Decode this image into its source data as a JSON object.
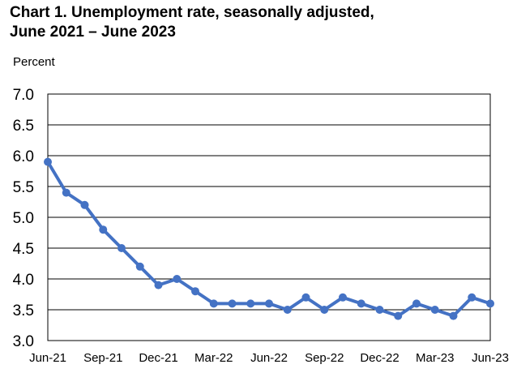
{
  "chart_data": {
    "type": "line",
    "title": "Chart 1. Unemployment rate, seasonally adjusted,\nJune 2021 – June 2023",
    "ylabel": "Percent",
    "xlabel": "",
    "ylim": [
      3.0,
      7.0
    ],
    "yticks": [
      "3.0",
      "3.5",
      "4.0",
      "4.5",
      "5.0",
      "5.5",
      "6.0",
      "6.5",
      "7.0"
    ],
    "xtick_labels": [
      {
        "index": 0,
        "label": "Jun-21"
      },
      {
        "index": 3,
        "label": "Sep-21"
      },
      {
        "index": 6,
        "label": "Dec-21"
      },
      {
        "index": 9,
        "label": "Mar-22"
      },
      {
        "index": 12,
        "label": "Jun-22"
      },
      {
        "index": 15,
        "label": "Sep-22"
      },
      {
        "index": 18,
        "label": "Dec-22"
      },
      {
        "index": 21,
        "label": "Mar-23"
      },
      {
        "index": 24,
        "label": "Jun-23"
      }
    ],
    "x": [
      "Jun-21",
      "Jul-21",
      "Aug-21",
      "Sep-21",
      "Oct-21",
      "Nov-21",
      "Dec-21",
      "Jan-22",
      "Feb-22",
      "Mar-22",
      "Apr-22",
      "May-22",
      "Jun-22",
      "Jul-22",
      "Aug-22",
      "Sep-22",
      "Oct-22",
      "Nov-22",
      "Dec-22",
      "Jan-23",
      "Feb-23",
      "Mar-23",
      "Apr-23",
      "May-23",
      "Jun-23"
    ],
    "series": [
      {
        "values": [
          5.9,
          5.4,
          5.2,
          4.8,
          4.5,
          4.2,
          3.9,
          4.0,
          3.8,
          3.6,
          3.6,
          3.6,
          3.6,
          3.5,
          3.7,
          3.5,
          3.7,
          3.6,
          3.5,
          3.4,
          3.6,
          3.5,
          3.4,
          3.7,
          3.6
        ],
        "color": "#4472C4"
      }
    ],
    "grid": "horizontal",
    "legend": "none"
  }
}
